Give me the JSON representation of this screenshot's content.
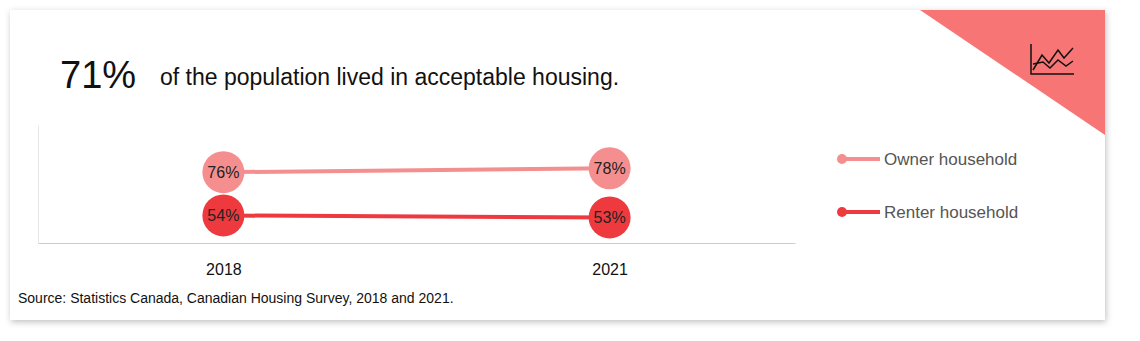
{
  "chart_data": {
    "type": "line",
    "annotations": [
      "71%"
    ],
    "title": "of the population lived in acceptable housing.",
    "source": "Source: Statistics Canada, Canadian Housing Survey, 2018 and 2021.",
    "categories": [
      "2018",
      "2021"
    ],
    "series": [
      {
        "name": "Owner household",
        "color": "#f58f8f",
        "marker": "circle",
        "values": [
          76,
          78
        ],
        "value_labels": [
          "76%",
          "78%"
        ]
      },
      {
        "name": "Renter household",
        "color": "#ee3a3f",
        "marker": "circle",
        "values": [
          54,
          53
        ],
        "value_labels": [
          "54%",
          "53%"
        ]
      }
    ],
    "ylim": [
      40,
      100
    ],
    "yticks": [],
    "tick_labels": "x",
    "grid": false,
    "legend": "right",
    "data_labels": true
  }
}
